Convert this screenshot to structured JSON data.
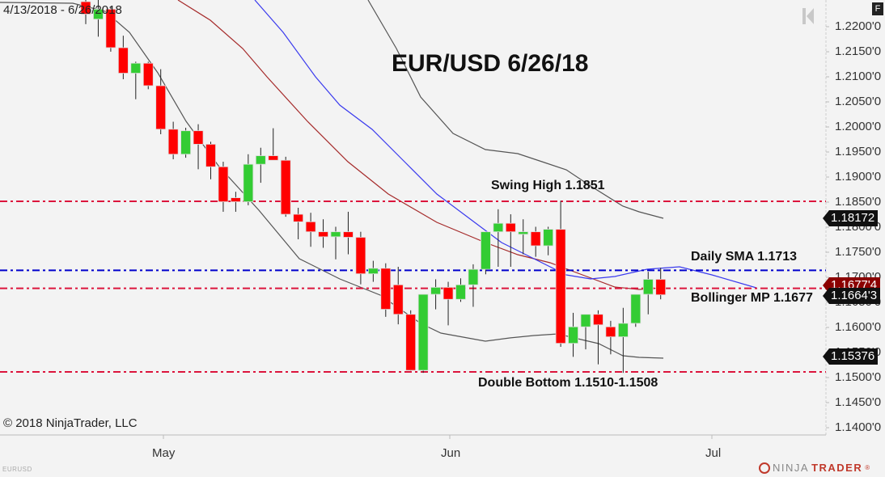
{
  "header": {
    "date_range": "4/13/2018 - 6/26/2018",
    "title": "EUR/USD 6/26/18",
    "f_button": "F"
  },
  "footer": {
    "copyright": "© 2018 NinjaTrader, LLC",
    "symbol": "EURUSD",
    "logo_left": "NINJA",
    "logo_right": "TRADER",
    "logo_suffix": "®"
  },
  "annotations": {
    "swing_high": "Swing High  1.1851",
    "daily_sma": "Daily SMA 1.1713",
    "bollinger_mp": "Bollinger MP 1.1677",
    "double_bottom": "Double Bottom 1.1510-1.1508"
  },
  "price_tags": {
    "upper_band": "1.18172",
    "middle": "1.1677'4",
    "last": "1.1664'3",
    "lower_band": "1.15376"
  },
  "colors": {
    "up": "#33cc33",
    "down": "#ff0000",
    "red_line": "#dc143c",
    "blue_line": "#0000cc",
    "sma_blue": "#3a3aee",
    "sma_red": "#a52a2a",
    "band": "#555555"
  },
  "chart_data": {
    "type": "candlestick",
    "title": "EUR/USD 6/26/18",
    "xlabel": "",
    "ylabel": "",
    "x_ticks": [
      "May",
      "Jun",
      "Jul"
    ],
    "y_ticks": [
      "1.2200'0",
      "1.2150'0",
      "1.2100'0",
      "1.2050'0",
      "1.2000'0",
      "1.1950'0",
      "1.1900'0",
      "1.1850'0",
      "1.1800'0",
      "1.1750'0",
      "1.1700'0",
      "1.1650'0",
      "1.1600'0",
      "1.1550'0",
      "1.1500'0",
      "1.1450'0",
      "1.1400'0"
    ],
    "ylim": [
      1.137,
      1.225
    ],
    "grid": false,
    "candles": [
      {
        "o": 1.225,
        "h": 1.226,
        "l": 1.2205,
        "c": 1.2225
      },
      {
        "o": 1.2215,
        "h": 1.2262,
        "l": 1.218,
        "c": 1.2235
      },
      {
        "o": 1.2235,
        "h": 1.224,
        "l": 1.215,
        "c": 1.2158
      },
      {
        "o": 1.2158,
        "h": 1.2182,
        "l": 1.2095,
        "c": 1.2107
      },
      {
        "o": 1.2107,
        "h": 1.213,
        "l": 1.2055,
        "c": 1.2127
      },
      {
        "o": 1.2127,
        "h": 1.213,
        "l": 1.2075,
        "c": 1.2082
      },
      {
        "o": 1.2082,
        "h": 1.2115,
        "l": 1.1985,
        "c": 1.1995
      },
      {
        "o": 1.1995,
        "h": 1.201,
        "l": 1.1935,
        "c": 1.1945
      },
      {
        "o": 1.1945,
        "h": 1.1998,
        "l": 1.1938,
        "c": 1.1992
      },
      {
        "o": 1.1992,
        "h": 1.2005,
        "l": 1.1915,
        "c": 1.1965
      },
      {
        "o": 1.1965,
        "h": 1.197,
        "l": 1.1895,
        "c": 1.192
      },
      {
        "o": 1.192,
        "h": 1.193,
        "l": 1.183,
        "c": 1.185
      },
      {
        "o": 1.1858,
        "h": 1.187,
        "l": 1.183,
        "c": 1.185
      },
      {
        "o": 1.185,
        "h": 1.1945,
        "l": 1.1843,
        "c": 1.1925
      },
      {
        "o": 1.1925,
        "h": 1.1958,
        "l": 1.1888,
        "c": 1.1942
      },
      {
        "o": 1.1942,
        "h": 1.1997,
        "l": 1.1935,
        "c": 1.1933
      },
      {
        "o": 1.1933,
        "h": 1.194,
        "l": 1.182,
        "c": 1.1825
      },
      {
        "o": 1.1825,
        "h": 1.1838,
        "l": 1.1775,
        "c": 1.181
      },
      {
        "o": 1.181,
        "h": 1.1828,
        "l": 1.176,
        "c": 1.179
      },
      {
        "o": 1.179,
        "h": 1.1815,
        "l": 1.1758,
        "c": 1.178
      },
      {
        "o": 1.178,
        "h": 1.18,
        "l": 1.1735,
        "c": 1.179
      },
      {
        "o": 1.179,
        "h": 1.183,
        "l": 1.1745,
        "c": 1.1779
      },
      {
        "o": 1.1779,
        "h": 1.179,
        "l": 1.1685,
        "c": 1.1706
      },
      {
        "o": 1.1706,
        "h": 1.1732,
        "l": 1.169,
        "c": 1.1717
      },
      {
        "o": 1.1717,
        "h": 1.1727,
        "l": 1.162,
        "c": 1.1635
      },
      {
        "o": 1.1684,
        "h": 1.172,
        "l": 1.1605,
        "c": 1.1625
      },
      {
        "o": 1.1625,
        "h": 1.1633,
        "l": 1.1512,
        "c": 1.1513
      },
      {
        "o": 1.1513,
        "h": 1.1658,
        "l": 1.1508,
        "c": 1.1665
      },
      {
        "o": 1.1665,
        "h": 1.1695,
        "l": 1.1635,
        "c": 1.1679
      },
      {
        "o": 1.1679,
        "h": 1.169,
        "l": 1.1603,
        "c": 1.1655
      },
      {
        "o": 1.1655,
        "h": 1.1697,
        "l": 1.165,
        "c": 1.1684
      },
      {
        "o": 1.1684,
        "h": 1.1725,
        "l": 1.164,
        "c": 1.1715
      },
      {
        "o": 1.1715,
        "h": 1.178,
        "l": 1.1705,
        "c": 1.179
      },
      {
        "o": 1.179,
        "h": 1.1835,
        "l": 1.172,
        "c": 1.1807
      },
      {
        "o": 1.1807,
        "h": 1.1825,
        "l": 1.172,
        "c": 1.179
      },
      {
        "o": 1.1785,
        "h": 1.1815,
        "l": 1.1745,
        "c": 1.179
      },
      {
        "o": 1.179,
        "h": 1.18,
        "l": 1.174,
        "c": 1.1762
      },
      {
        "o": 1.1762,
        "h": 1.18,
        "l": 1.1743,
        "c": 1.1795
      },
      {
        "o": 1.1795,
        "h": 1.1852,
        "l": 1.156,
        "c": 1.1567
      },
      {
        "o": 1.1567,
        "h": 1.1628,
        "l": 1.154,
        "c": 1.16
      },
      {
        "o": 1.16,
        "h": 1.1625,
        "l": 1.1555,
        "c": 1.1625
      },
      {
        "o": 1.1625,
        "h": 1.1633,
        "l": 1.1525,
        "c": 1.1604
      },
      {
        "o": 1.16,
        "h": 1.1612,
        "l": 1.1545,
        "c": 1.158
      },
      {
        "o": 1.158,
        "h": 1.1638,
        "l": 1.1508,
        "c": 1.1607
      },
      {
        "o": 1.1607,
        "h": 1.1655,
        "l": 1.16,
        "c": 1.1665
      },
      {
        "o": 1.1665,
        "h": 1.171,
        "l": 1.1625,
        "c": 1.1695
      },
      {
        "o": 1.1695,
        "h": 1.1718,
        "l": 1.1655,
        "c": 1.1664
      }
    ],
    "horizontal_lines": [
      {
        "label": "Swing High",
        "value": 1.1851,
        "color": "red",
        "style": "dash-dot"
      },
      {
        "label": "Daily SMA",
        "value": 1.1713,
        "color": "blue",
        "style": "dash-dot"
      },
      {
        "label": "Bollinger MP",
        "value": 1.1677,
        "color": "red",
        "style": "dash-dot"
      },
      {
        "label": "Double Bottom",
        "value": 1.151,
        "color": "red",
        "style": "dash-dot"
      }
    ],
    "series": [
      {
        "name": "Bollinger Upper",
        "color": "gray",
        "last": 1.18172
      },
      {
        "name": "Bollinger Middle (SMA red)",
        "color": "brown",
        "last": 1.16774
      },
      {
        "name": "SMA blue",
        "color": "blue"
      },
      {
        "name": "Bollinger Lower",
        "color": "gray",
        "last": 1.15376
      }
    ],
    "last_price": 1.16643
  }
}
